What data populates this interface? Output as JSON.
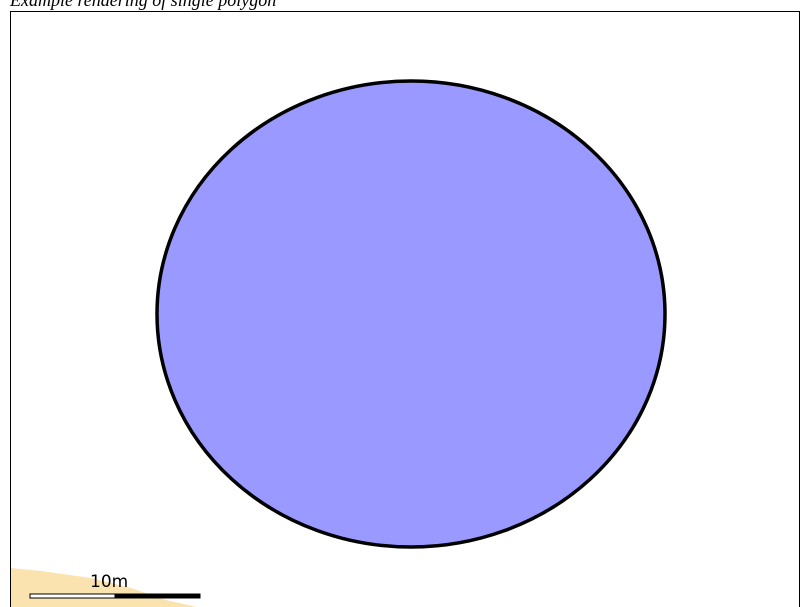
{
  "caption": "Example rendering of single polygon",
  "map": {
    "polygon": {
      "shape": "circle",
      "fill_color": "#9999ff",
      "stroke_color": "#000000"
    },
    "corner_feature": {
      "fill_color": "#fbe3b0"
    },
    "scale_bar": {
      "label": "10m",
      "colors": [
        "#ffffff",
        "#000000"
      ]
    }
  }
}
